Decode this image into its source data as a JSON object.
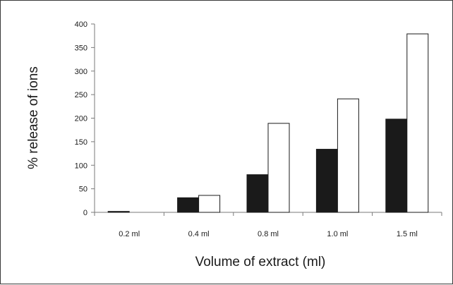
{
  "chart_data": {
    "type": "bar",
    "categories": [
      "0.2 ml",
      "0.4 ml",
      "0.8 ml",
      "1.0 ml",
      "1.5 ml"
    ],
    "series": [
      {
        "values": [
          2,
          31,
          80,
          134,
          198
        ],
        "color": "#1a1a1a"
      },
      {
        "values": [
          0,
          36,
          189,
          241,
          379
        ],
        "color": "#ffffff"
      }
    ],
    "xlabel": "Volume of extract (ml)",
    "ylabel": "% release of ions",
    "ylim": [
      0,
      400
    ],
    "yticks": [
      0,
      50,
      100,
      150,
      200,
      250,
      300,
      350,
      400
    ],
    "grid": false,
    "legend": "none"
  }
}
